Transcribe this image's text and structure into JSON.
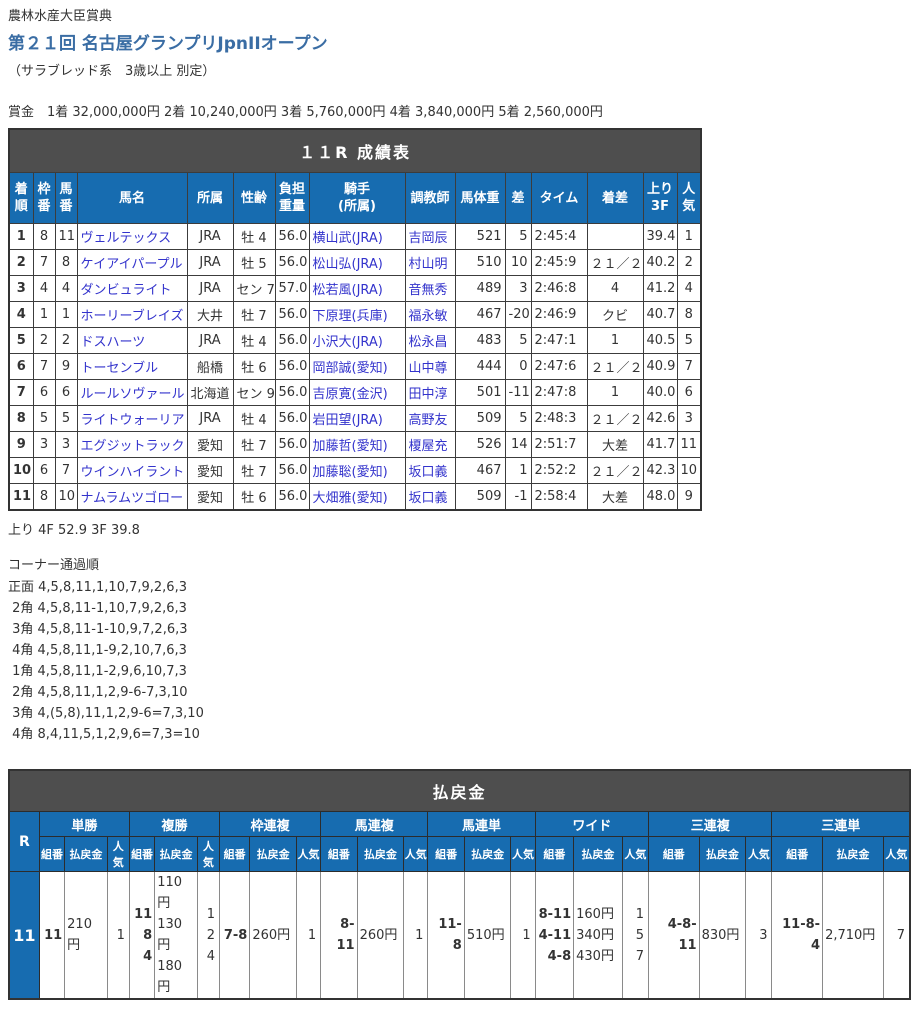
{
  "colors": {
    "accent_blue": "#176cb0",
    "bar_dark": "#4e4e4e",
    "link_blue": "#3333cc",
    "title_blue": "#3a6da4"
  },
  "page": {
    "event_label": "農林水産大臣賞典",
    "title": "第２１回 名古屋グランプリJpnIIオープン",
    "conditions": "（サラブレッド系　3歳以上 別定）",
    "prize_line": "賞金　1着 32,000,000円  2着 10,240,000円  3着 5,760,000円  4着 3,840,000円  5着 2,560,000円"
  },
  "results_table": {
    "title": "１１R 成績表",
    "headers": [
      "着\n順",
      "枠\n番",
      "馬\n番",
      "馬名",
      "所属",
      "性齢",
      "負担\n重量",
      "騎手\n(所属)",
      "調教師",
      "馬体重",
      "差",
      "タイム",
      "着差",
      "上り\n3F",
      "人\n気"
    ],
    "rows": [
      {
        "pos": "1",
        "waku": "8",
        "uma": "11",
        "name": "ヴェルテックス",
        "aff": "JRA",
        "sexage": "牡 4",
        "weight": "56.0",
        "jockey": "横山武(JRA)",
        "trainer": "吉岡辰",
        "hweight": "521",
        "diff": "5",
        "time": "2:45:4",
        "margin": "",
        "agari": "39.4",
        "pop": "1"
      },
      {
        "pos": "2",
        "waku": "7",
        "uma": "8",
        "name": "ケイアイパープル",
        "aff": "JRA",
        "sexage": "牡 5",
        "weight": "56.0",
        "jockey": "松山弘(JRA)",
        "trainer": "村山明",
        "hweight": "510",
        "diff": "10",
        "time": "2:45:9",
        "margin": "２１／２",
        "agari": "40.2",
        "pop": "2"
      },
      {
        "pos": "3",
        "waku": "4",
        "uma": "4",
        "name": "ダンビュライト",
        "aff": "JRA",
        "sexage": "セン 7",
        "weight": "57.0",
        "jockey": "松若風(JRA)",
        "trainer": "音無秀",
        "hweight": "489",
        "diff": "3",
        "time": "2:46:8",
        "margin": "4",
        "agari": "41.2",
        "pop": "4"
      },
      {
        "pos": "4",
        "waku": "1",
        "uma": "1",
        "name": "ホーリーブレイズ",
        "aff": "大井",
        "sexage": "牡 7",
        "weight": "56.0",
        "jockey": "下原理(兵庫)",
        "trainer": "福永敏",
        "hweight": "467",
        "diff": "-20",
        "time": "2:46:9",
        "margin": "クビ",
        "agari": "40.7",
        "pop": "8"
      },
      {
        "pos": "5",
        "waku": "2",
        "uma": "2",
        "name": "ドスハーツ",
        "aff": "JRA",
        "sexage": "牡 4",
        "weight": "56.0",
        "jockey": "小沢大(JRA)",
        "trainer": "松永昌",
        "hweight": "483",
        "diff": "5",
        "time": "2:47:1",
        "margin": "1",
        "agari": "40.5",
        "pop": "5"
      },
      {
        "pos": "6",
        "waku": "7",
        "uma": "9",
        "name": "トーセンブル",
        "aff": "船橋",
        "sexage": "牡 6",
        "weight": "56.0",
        "jockey": "岡部誠(愛知)",
        "trainer": "山中尊",
        "hweight": "444",
        "diff": "0",
        "time": "2:47:6",
        "margin": "２１／２",
        "agari": "40.9",
        "pop": "7"
      },
      {
        "pos": "7",
        "waku": "6",
        "uma": "6",
        "name": "ルールソヴァール",
        "aff": "北海道",
        "sexage": "セン 9",
        "weight": "56.0",
        "jockey": "吉原寛(金沢)",
        "trainer": "田中淳",
        "hweight": "501",
        "diff": "-11",
        "time": "2:47:8",
        "margin": "1",
        "agari": "40.0",
        "pop": "6"
      },
      {
        "pos": "8",
        "waku": "5",
        "uma": "5",
        "name": "ライトウォーリア",
        "aff": "JRA",
        "sexage": "牡 4",
        "weight": "56.0",
        "jockey": "岩田望(JRA)",
        "trainer": "高野友",
        "hweight": "509",
        "diff": "5",
        "time": "2:48:3",
        "margin": "２１／２",
        "agari": "42.6",
        "pop": "3"
      },
      {
        "pos": "9",
        "waku": "3",
        "uma": "3",
        "name": "エグジットラック",
        "aff": "愛知",
        "sexage": "牡 7",
        "weight": "56.0",
        "jockey": "加藤哲(愛知)",
        "trainer": "榎屋充",
        "hweight": "526",
        "diff": "14",
        "time": "2:51:7",
        "margin": "大差",
        "agari": "41.7",
        "pop": "11"
      },
      {
        "pos": "10",
        "waku": "6",
        "uma": "7",
        "name": "ウインハイラント",
        "aff": "愛知",
        "sexage": "牡 7",
        "weight": "56.0",
        "jockey": "加藤聡(愛知)",
        "trainer": "坂口義",
        "hweight": "467",
        "diff": "1",
        "time": "2:52:2",
        "margin": "２１／２",
        "agari": "42.3",
        "pop": "10"
      },
      {
        "pos": "11",
        "waku": "8",
        "uma": "10",
        "name": "ナムラムツゴロー",
        "aff": "愛知",
        "sexage": "牡 6",
        "weight": "56.0",
        "jockey": "大畑雅(愛知)",
        "trainer": "坂口義",
        "hweight": "509",
        "diff": "-1",
        "time": "2:58:4",
        "margin": "大差",
        "agari": "48.0",
        "pop": "9"
      }
    ]
  },
  "agari_line": "上り 4F 52.9 3F 39.8",
  "corner_section": {
    "title": "コーナー通過順",
    "lines": [
      "正面 4,5,8,11,1,10,7,9,2,6,3",
      " 2角 4,5,8,11-1,10,7,9,2,6,3",
      " 3角 4,5,8,11-1-10,9,7,2,6,3",
      " 4角 4,5,8,11,1-9,2,10,7,6,3",
      " 1角 4,5,8,11,1-2,9,6,10,7,3",
      " 2角 4,5,8,11,1,2,9-6-7,3,10",
      " 3角 4,(5,8),11,1,2,9-6=7,3,10",
      " 4角 8,4,11,5,1,2,9,6=7,3=10"
    ]
  },
  "payout_table": {
    "title": "払戻金",
    "race_label": "R",
    "race_number": "11",
    "sub_headers": [
      "組番",
      "払戻金",
      "人気"
    ],
    "groups": [
      {
        "label": "単勝",
        "rows": [
          [
            "11",
            "210円",
            "1"
          ]
        ]
      },
      {
        "label": "複勝",
        "rows": [
          [
            "11",
            "110円",
            "1"
          ],
          [
            "8",
            "130円",
            "2"
          ],
          [
            "4",
            "180円",
            "4"
          ]
        ]
      },
      {
        "label": "枠連複",
        "rows": [
          [
            "7-8",
            "260円",
            "1"
          ]
        ]
      },
      {
        "label": "馬連複",
        "rows": [
          [
            "8-11",
            "260円",
            "1"
          ]
        ]
      },
      {
        "label": "馬連単",
        "rows": [
          [
            "11-8",
            "510円",
            "1"
          ]
        ]
      },
      {
        "label": "ワイド",
        "rows": [
          [
            "8-11",
            "160円",
            "1"
          ],
          [
            "4-11",
            "340円",
            "5"
          ],
          [
            "4-8",
            "430円",
            "7"
          ]
        ]
      },
      {
        "label": "三連複",
        "rows": [
          [
            "4-8-11",
            "830円",
            "3"
          ]
        ]
      },
      {
        "label": "三連単",
        "rows": [
          [
            "11-8-4",
            "2,710円",
            "7"
          ]
        ]
      }
    ]
  }
}
